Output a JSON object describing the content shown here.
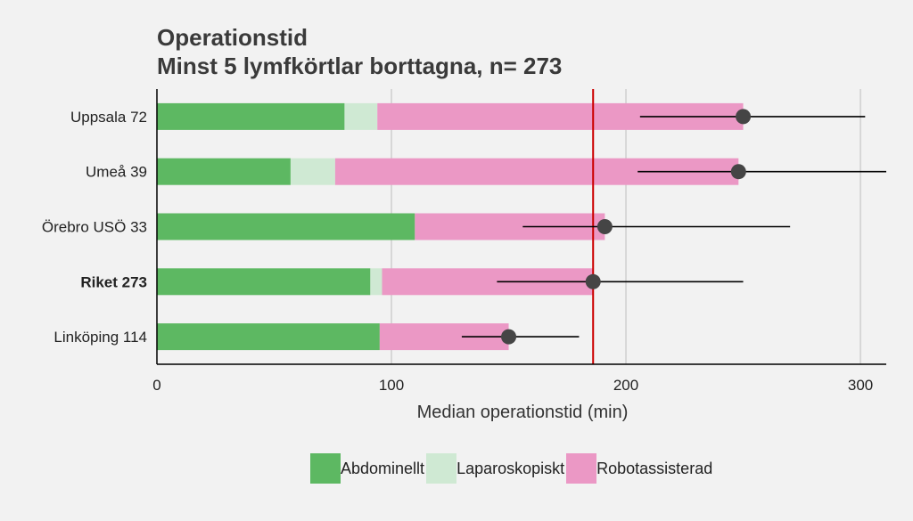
{
  "chart_data": {
    "type": "bar",
    "stacked": true,
    "orientation": "horizontal",
    "title": "Operationstid",
    "subtitle": "Minst 5 lymfkörtlar borttagna, n= 273",
    "xlabel": "Median operationstid (min)",
    "ylabel": "",
    "xlim": [
      0,
      311
    ],
    "xticks": [
      0,
      100,
      200,
      300
    ],
    "grid": true,
    "legend_position": "bottom",
    "categories": [
      "Uppsala 72",
      "Umeå 39",
      "Örebro USÖ 33",
      "Riket 273",
      "Linköping 114"
    ],
    "bold_category": "Riket 273",
    "series": [
      {
        "name": "Abdominellt",
        "color": "#5db862",
        "values": [
          80,
          57,
          110,
          91,
          95
        ]
      },
      {
        "name": "Laparoskopiskt",
        "color": "#cfe9d3",
        "values": [
          14,
          19,
          0,
          5,
          0
        ]
      },
      {
        "name": "Robotassisterad",
        "color": "#eb98c5",
        "values": [
          156,
          172,
          81,
          90,
          55
        ]
      }
    ],
    "median_points": [
      250,
      248,
      191,
      186,
      150
    ],
    "error_ranges": [
      [
        206,
        302
      ],
      [
        205,
        311
      ],
      [
        156,
        270
      ],
      [
        145,
        250
      ],
      [
        130,
        180
      ]
    ],
    "reference_line": {
      "value": 186,
      "color": "#cc0000"
    },
    "point_color": "#454545"
  }
}
